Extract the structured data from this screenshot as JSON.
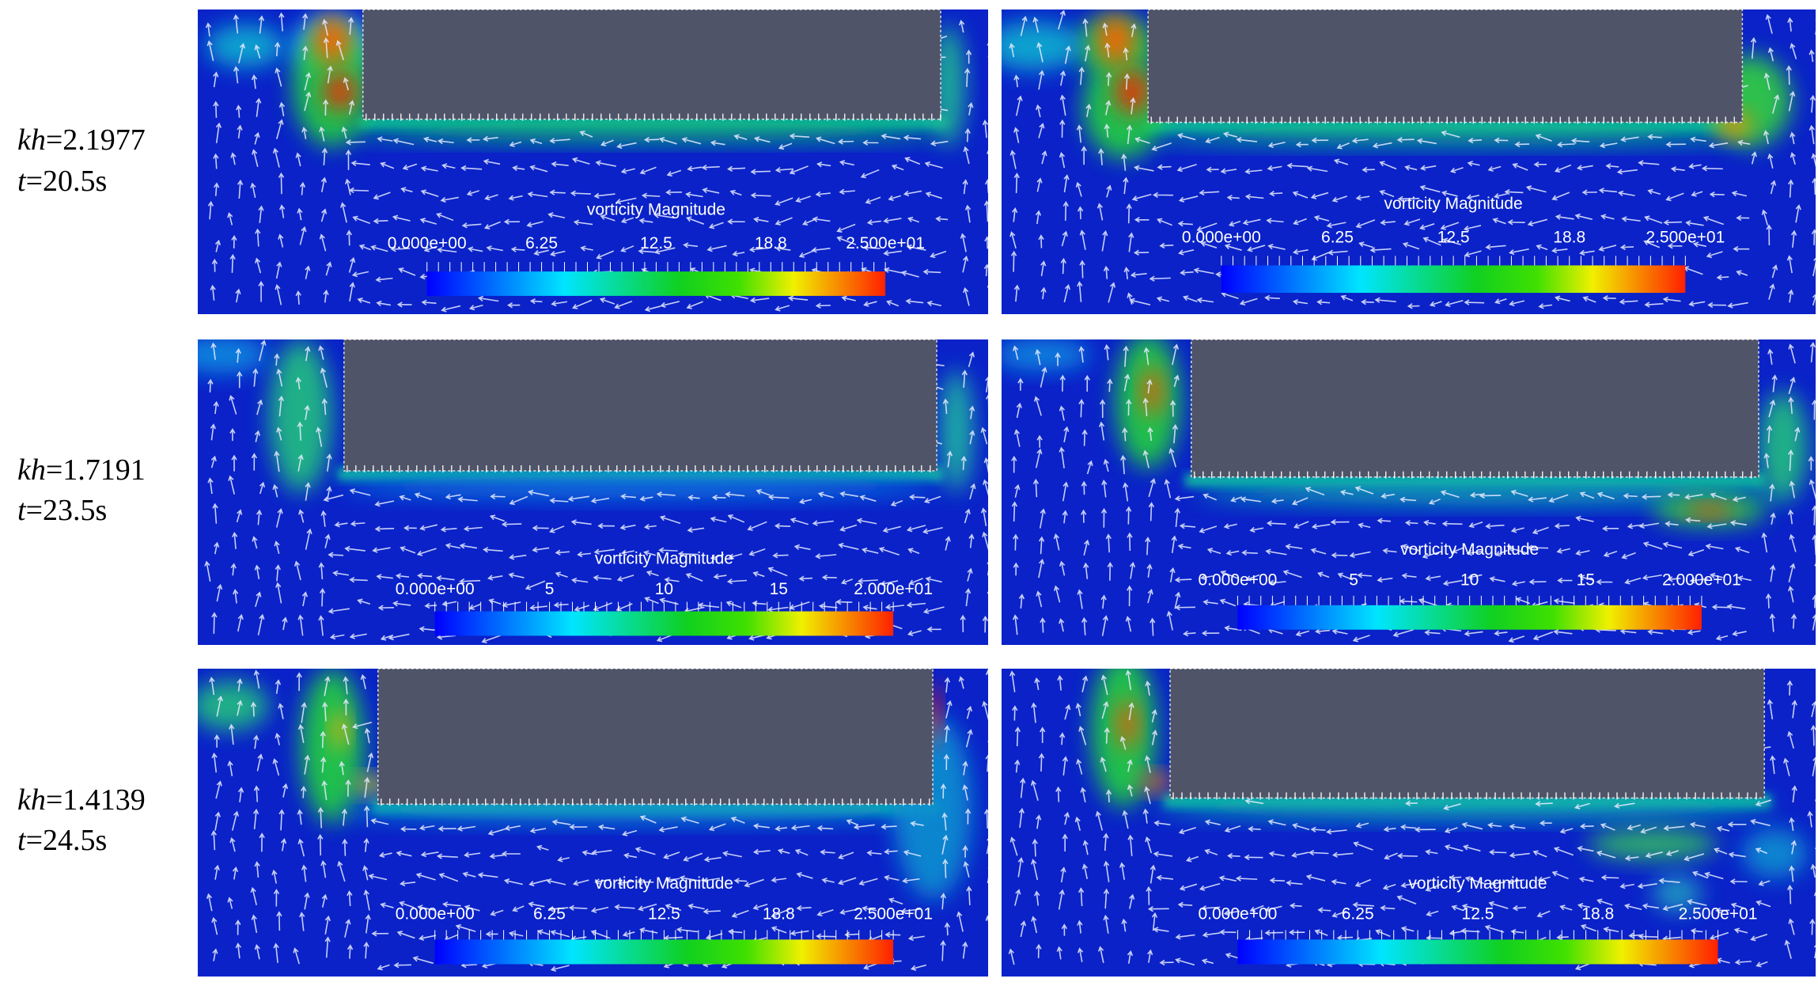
{
  "rows": [
    {
      "label": {
        "kh": "kh",
        "kh_value": "=2.1977",
        "t": "t",
        "t_value": "=20.5s"
      },
      "panels": [
        {
          "colorbar": {
            "title": "vorticity Magnitude",
            "ticks": [
              "0.000e+00",
              "6.25",
              "12.5",
              "18.8",
              "2.500e+01"
            ]
          }
        },
        {
          "colorbar": {
            "title": "vorticity Magnitude",
            "ticks": [
              "0.000e+00",
              "6.25",
              "12.5",
              "18.8",
              "2.500e+01"
            ]
          }
        }
      ]
    },
    {
      "label": {
        "kh": "kh",
        "kh_value": "=1.7191",
        "t": "t",
        "t_value": "=23.5s"
      },
      "panels": [
        {
          "colorbar": {
            "title": "vorticity Magnitude",
            "ticks": [
              "0.000e+00",
              "5",
              "10",
              "15",
              "2.000e+01"
            ]
          }
        },
        {
          "colorbar": {
            "title": "vorticity Magnitude",
            "ticks": [
              "0.000e+00",
              "5",
              "10",
              "15",
              "2.000e+01"
            ]
          }
        }
      ]
    },
    {
      "label": {
        "kh": "kh",
        "kh_value": "=1.4139",
        "t": "t",
        "t_value": "=24.5s"
      },
      "panels": [
        {
          "colorbar": {
            "title": "vorticity Magnitude",
            "ticks": [
              "0.000e+00",
              "6.25",
              "12.5",
              "18.8",
              "2.500e+01"
            ]
          }
        },
        {
          "colorbar": {
            "title": "vorticity Magnitude",
            "ticks": [
              "0.000e+00",
              "6.25",
              "12.5",
              "18.8",
              "2.500e+01"
            ]
          }
        }
      ]
    }
  ]
}
